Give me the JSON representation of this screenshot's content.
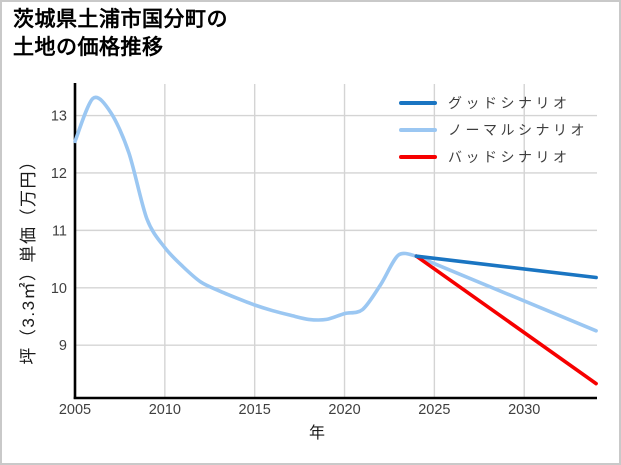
{
  "title": {
    "line1": "茨城県土浦市国分町の",
    "line2": "土地の価格推移"
  },
  "axes": {
    "x_label": "年",
    "y_label": "坪（3.3㎡）単価（万円）"
  },
  "legend": {
    "items": [
      {
        "label": "グッドシナリオ",
        "color": "#1a75c2"
      },
      {
        "label": "ノーマルシナリオ",
        "color": "#9bc7f2"
      },
      {
        "label": "バッドシナリオ",
        "color": "#f60000"
      }
    ]
  },
  "colors": {
    "good_scenario": "#1a75c2",
    "normal_scenario": "#9bc7f2",
    "bad_scenario": "#f60000",
    "history_line": "#9bc7f2",
    "gridline": "#d4d4d4",
    "axis": "#000000",
    "tick_text": "#3f3f3f",
    "frame_border": "#c9c9c9"
  },
  "chart_data": {
    "type": "line",
    "title": "茨城県土浦市国分町の土地の価格推移",
    "xlabel": "年",
    "ylabel": "坪（3.3㎡）単価（万円）",
    "xlim": [
      2005,
      2034.05
    ],
    "ylim": [
      8.08,
      13.55
    ],
    "x_ticks": [
      2005,
      2010,
      2015,
      2020,
      2025,
      2030
    ],
    "y_ticks": [
      9,
      10,
      11,
      12,
      13
    ],
    "grid": true,
    "legend_position": "upper right",
    "series": [
      {
        "name": "price-history",
        "legend": null,
        "color": "#9bc7f2",
        "smooth": true,
        "points": [
          [
            2005,
            12.55
          ],
          [
            2006,
            13.3
          ],
          [
            2007,
            13.05
          ],
          [
            2008,
            12.35
          ],
          [
            2009,
            11.2
          ],
          [
            2010,
            10.7
          ],
          [
            2011,
            10.37
          ],
          [
            2012,
            10.1
          ],
          [
            2013,
            9.95
          ],
          [
            2014,
            9.82
          ],
          [
            2015,
            9.7
          ],
          [
            2016,
            9.6
          ],
          [
            2017,
            9.52
          ],
          [
            2018,
            9.45
          ],
          [
            2019,
            9.45
          ],
          [
            2020,
            9.55
          ],
          [
            2021,
            9.62
          ],
          [
            2022,
            10.05
          ],
          [
            2023,
            10.57
          ],
          [
            2024,
            10.55
          ]
        ]
      },
      {
        "name": "normal-scenario",
        "legend": "ノーマルシナリオ",
        "color": "#9bc7f2",
        "smooth": false,
        "points": [
          [
            2024,
            10.55
          ],
          [
            2034,
            9.25
          ]
        ]
      },
      {
        "name": "bad-scenario",
        "legend": "バッドシナリオ",
        "color": "#f60000",
        "smooth": false,
        "points": [
          [
            2024,
            10.55
          ],
          [
            2034,
            8.33
          ]
        ]
      },
      {
        "name": "good-scenario",
        "legend": "グッドシナリオ",
        "color": "#1a75c2",
        "smooth": false,
        "points": [
          [
            2024,
            10.55
          ],
          [
            2034,
            10.18
          ]
        ]
      }
    ]
  }
}
